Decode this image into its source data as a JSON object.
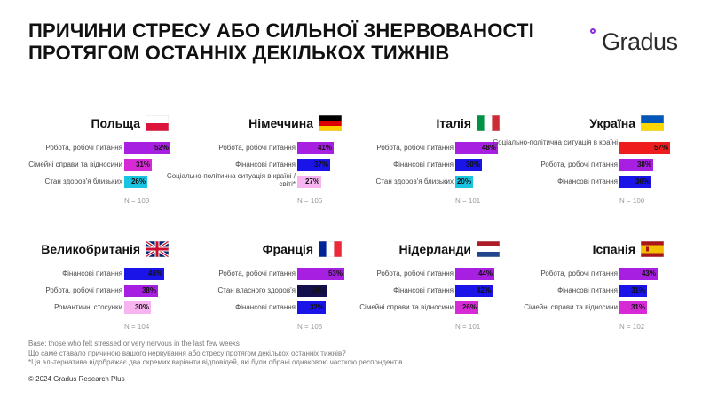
{
  "title_line1": "ПРИЧИНИ СТРЕСУ АБО СИЛЬНОЇ ЗНЕРВОВАНОСТІ",
  "title_line2": "ПРОТЯГОМ ОСТАННІХ ДЕКІЛЬКОХ ТИЖНІВ",
  "logo_text": "Gradus",
  "colors": {
    "purple": "#a71fe0",
    "magenta": "#d62ad6",
    "blue": "#1a14e8",
    "navy": "#14104e",
    "cyan": "#18c4e0",
    "lightpink": "#f7b4f0",
    "red": "#ee1c1c",
    "accent": "#8b2ae0"
  },
  "chart_data": [
    {
      "type": "bar",
      "country": "Польща",
      "flag": "flag-poland-icon",
      "n": "N = 103",
      "items": [
        {
          "label": "Робота, робочі питання",
          "value": 52,
          "display": "52%",
          "color": "#a71fe0"
        },
        {
          "label": "Сімейні справи та відносини",
          "value": 31,
          "display": "31%",
          "color": "#d62ad6"
        },
        {
          "label": "Стан здоров'я близьких",
          "value": 26,
          "display": "26%",
          "color": "#18c4e0"
        }
      ]
    },
    {
      "type": "bar",
      "country": "Німеччина",
      "flag": "flag-germany-icon",
      "n": "N = 106",
      "items": [
        {
          "label": "Робота, робочі питання",
          "value": 41,
          "display": "41%",
          "color": "#a71fe0"
        },
        {
          "label": "Фінансові питання",
          "value": 37,
          "display": "37%",
          "color": "#1a14e8"
        },
        {
          "label": "Соціально-політична ситуація в країні / світі*",
          "value": 27,
          "display": "27%",
          "color": "#f7b4f0"
        }
      ]
    },
    {
      "type": "bar",
      "country": "Італія",
      "flag": "flag-italy-icon",
      "n": "N = 101",
      "items": [
        {
          "label": "Робота, робочі питання",
          "value": 48,
          "display": "48%",
          "color": "#a71fe0"
        },
        {
          "label": "Фінансові питання",
          "value": 30,
          "display": "30%",
          "color": "#1a14e8"
        },
        {
          "label": "Стан здоров'я близьких",
          "value": 20,
          "display": "20%",
          "color": "#18c4e0"
        }
      ]
    },
    {
      "type": "bar",
      "country": "Україна",
      "flag": "flag-ukraine-icon",
      "n": "N = 100",
      "items": [
        {
          "label": "Соціально-політична ситуація в країні",
          "value": 57,
          "display": "57%",
          "color": "#ee1c1c"
        },
        {
          "label": "Робота, робочі питання",
          "value": 38,
          "display": "38%",
          "color": "#a71fe0"
        },
        {
          "label": "Фінансові питання",
          "value": 36,
          "display": "36%",
          "color": "#1a14e8"
        }
      ]
    },
    {
      "type": "bar",
      "country": "Великобританія",
      "flag": "flag-uk-icon",
      "n": "N = 104",
      "items": [
        {
          "label": "Фінансові питання",
          "value": 45,
          "display": "45%",
          "color": "#1a14e8"
        },
        {
          "label": "Робота, робочі питання",
          "value": 38,
          "display": "38%",
          "color": "#a71fe0"
        },
        {
          "label": "Романтичні стосунки",
          "value": 30,
          "display": "30%",
          "color": "#f7b4f0"
        }
      ]
    },
    {
      "type": "bar",
      "country": "Франція",
      "flag": "flag-france-icon",
      "n": "N = 105",
      "items": [
        {
          "label": "Робота, робочі питання",
          "value": 53,
          "display": "53%",
          "color": "#a71fe0"
        },
        {
          "label": "Стан власного здоров'я",
          "value": 34,
          "display": "34%",
          "color": "#14104e"
        },
        {
          "label": "Фінансові питання",
          "value": 32,
          "display": "32%",
          "color": "#1a14e8"
        }
      ]
    },
    {
      "type": "bar",
      "country": "Нідерланди",
      "flag": "flag-netherlands-icon",
      "n": "N = 101",
      "items": [
        {
          "label": "Робота, робочі питання",
          "value": 44,
          "display": "44%",
          "color": "#a71fe0"
        },
        {
          "label": "Фінансові питання",
          "value": 42,
          "display": "42%",
          "color": "#1a14e8"
        },
        {
          "label": "Сімейні справи та відносини",
          "value": 26,
          "display": "26%",
          "color": "#d62ad6"
        }
      ]
    },
    {
      "type": "bar",
      "country": "Іспанія",
      "flag": "flag-spain-icon",
      "n": "N = 102",
      "items": [
        {
          "label": "Робота, робочі питання",
          "value": 43,
          "display": "43%",
          "color": "#a71fe0"
        },
        {
          "label": "Фінансові питання",
          "value": 31,
          "display": "31%",
          "color": "#1a14e8"
        },
        {
          "label": "Сімейні справи та відносини",
          "value": 31,
          "display": "31%",
          "color": "#d62ad6"
        }
      ]
    }
  ],
  "notes": [
    "Base: those who felt stressed or very nervous in the last few weeks",
    "Що саме ставало причиною вашого нервування або стресу протягом декількох останніх тижнів?",
    "*Ця альтернатива відображає два окремих варіанти відповідей, які були обрані однаковою часткою респондентів."
  ],
  "copyright": "© 2024 Gradus Research Plus"
}
